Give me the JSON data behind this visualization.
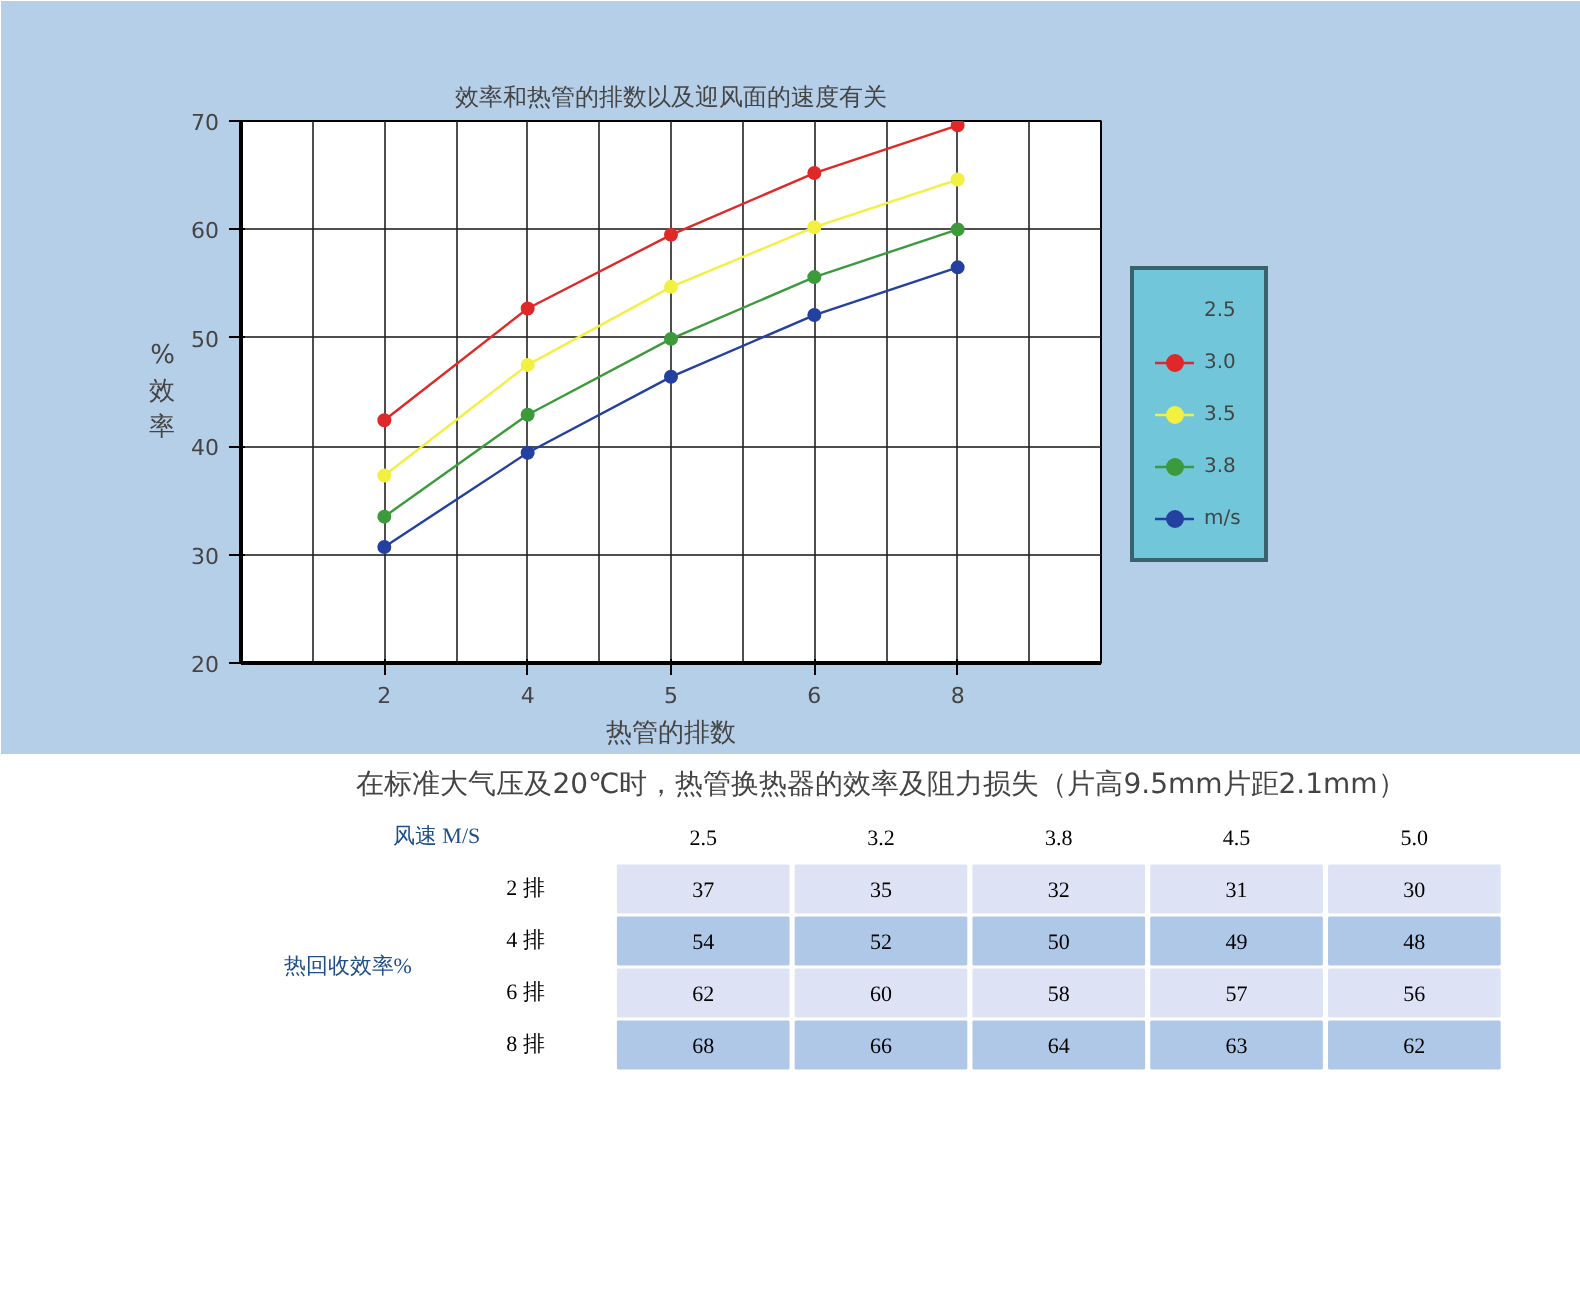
{
  "chart_data": [
    {
      "type": "line",
      "title": "效率和热管的排数以及迎风面的速度有关",
      "xlabel": "热管的排数",
      "ylabel": "%效率",
      "categories": [
        "2",
        "4",
        "5",
        "6",
        "8"
      ],
      "series": [
        {
          "name": "3.0",
          "color": "#e02828",
          "values": [
            42.4,
            52.7,
            59.5,
            65.2,
            69.6
          ]
        },
        {
          "name": "3.5",
          "color": "#f2f040",
          "values": [
            37.3,
            47.5,
            54.7,
            60.2,
            64.6
          ]
        },
        {
          "name": "3.8",
          "color": "#3c9a3c",
          "values": [
            33.5,
            42.9,
            49.9,
            55.6,
            60.0
          ]
        },
        {
          "name": "m/s",
          "color": "#2440a0",
          "values": [
            30.7,
            39.4,
            46.4,
            52.1,
            56.5
          ]
        }
      ],
      "annotations": [
        "2.5"
      ],
      "ylim": [
        20,
        70
      ],
      "yticks": [
        20,
        30,
        40,
        50,
        60,
        70
      ],
      "grid": true,
      "legend": "right",
      "marker": "circle",
      "line_style": "solid"
    },
    {
      "type": "heatmap",
      "title": "在标准大气压及20℃时，热管换热器的效率及阻力损失（片高9.5mm片距2.1mm）",
      "xlabel": "风速 M/S",
      "ylabel": "热回收效率%",
      "categories": [
        "2.5",
        "3.2",
        "3.8",
        "4.5",
        "5.0"
      ],
      "y_categories": [
        "2 排",
        "4 排",
        "6 排",
        "8 排"
      ],
      "data_labels": true,
      "cells": [
        [
          37,
          35,
          32,
          31,
          30
        ],
        [
          54,
          52,
          50,
          49,
          48
        ],
        [
          62,
          60,
          58,
          57,
          56
        ],
        [
          68,
          66,
          64,
          63,
          62
        ]
      ]
    }
  ]
}
